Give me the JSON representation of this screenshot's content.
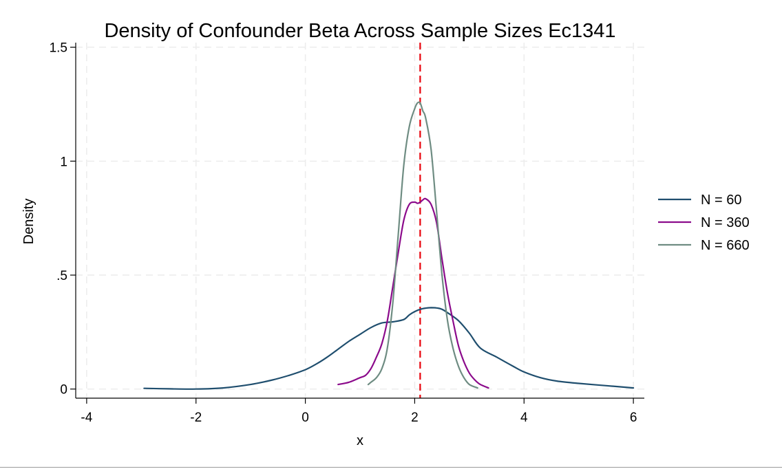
{
  "chart_data": {
    "type": "line",
    "title": "Density of Confounder Beta Across Sample Sizes Ec1341",
    "xlabel": "x",
    "ylabel": "Density",
    "xlim": [
      -4.2,
      6.2
    ],
    "ylim": [
      -0.04,
      1.52
    ],
    "x_ticks": [
      -4,
      -2,
      0,
      2,
      4,
      6
    ],
    "x_tick_labels": [
      "-4",
      "-2",
      "0",
      "2",
      "4",
      "6"
    ],
    "y_ticks": [
      0,
      0.5,
      1,
      1.5
    ],
    "y_tick_labels": [
      "0",
      ".5",
      "1",
      "1.5"
    ],
    "grid": true,
    "legend_position": "right",
    "reference_line": {
      "x": 2.1,
      "color": "#e8000b",
      "style": "dashed"
    },
    "series": [
      {
        "name": "N = 60",
        "color": "#1f4e6e",
        "x": [
          -2.95,
          -2.5,
          -2.0,
          -1.5,
          -1.0,
          -0.6,
          -0.3,
          0.0,
          0.2,
          0.4,
          0.6,
          0.8,
          1.0,
          1.2,
          1.4,
          1.6,
          1.8,
          1.9,
          2.0,
          2.1,
          2.2,
          2.3,
          2.4,
          2.5,
          2.6,
          2.8,
          3.0,
          3.2,
          3.5,
          3.8,
          4.0,
          4.3,
          4.6,
          5.0,
          5.5,
          6.0
        ],
        "values": [
          0.003,
          0.001,
          0.0,
          0.005,
          0.02,
          0.04,
          0.06,
          0.085,
          0.11,
          0.14,
          0.175,
          0.21,
          0.24,
          0.27,
          0.29,
          0.295,
          0.305,
          0.325,
          0.34,
          0.35,
          0.355,
          0.357,
          0.356,
          0.35,
          0.335,
          0.3,
          0.245,
          0.18,
          0.14,
          0.1,
          0.075,
          0.05,
          0.035,
          0.025,
          0.015,
          0.005
        ]
      },
      {
        "name": "N = 360",
        "color": "#8b0a8b",
        "x": [
          0.6,
          0.8,
          1.0,
          1.1,
          1.2,
          1.3,
          1.4,
          1.5,
          1.6,
          1.7,
          1.8,
          1.9,
          2.0,
          2.05,
          2.1,
          2.15,
          2.2,
          2.3,
          2.4,
          2.5,
          2.6,
          2.7,
          2.8,
          2.9,
          3.0,
          3.1,
          3.2,
          3.35
        ],
        "values": [
          0.02,
          0.03,
          0.05,
          0.06,
          0.09,
          0.14,
          0.2,
          0.3,
          0.45,
          0.6,
          0.74,
          0.81,
          0.82,
          0.815,
          0.82,
          0.83,
          0.835,
          0.81,
          0.73,
          0.57,
          0.42,
          0.3,
          0.19,
          0.12,
          0.07,
          0.04,
          0.02,
          0.005
        ]
      },
      {
        "name": "N = 660",
        "color": "#6e8c82",
        "x": [
          1.15,
          1.2,
          1.3,
          1.4,
          1.5,
          1.6,
          1.7,
          1.8,
          1.9,
          2.0,
          2.05,
          2.1,
          2.15,
          2.2,
          2.3,
          2.4,
          2.5,
          2.6,
          2.7,
          2.8,
          2.9,
          3.0,
          3.15
        ],
        "values": [
          0.02,
          0.03,
          0.05,
          0.09,
          0.18,
          0.38,
          0.68,
          0.98,
          1.15,
          1.23,
          1.255,
          1.255,
          1.22,
          1.19,
          1.05,
          0.78,
          0.5,
          0.3,
          0.18,
          0.1,
          0.05,
          0.02,
          0.005
        ]
      }
    ]
  }
}
